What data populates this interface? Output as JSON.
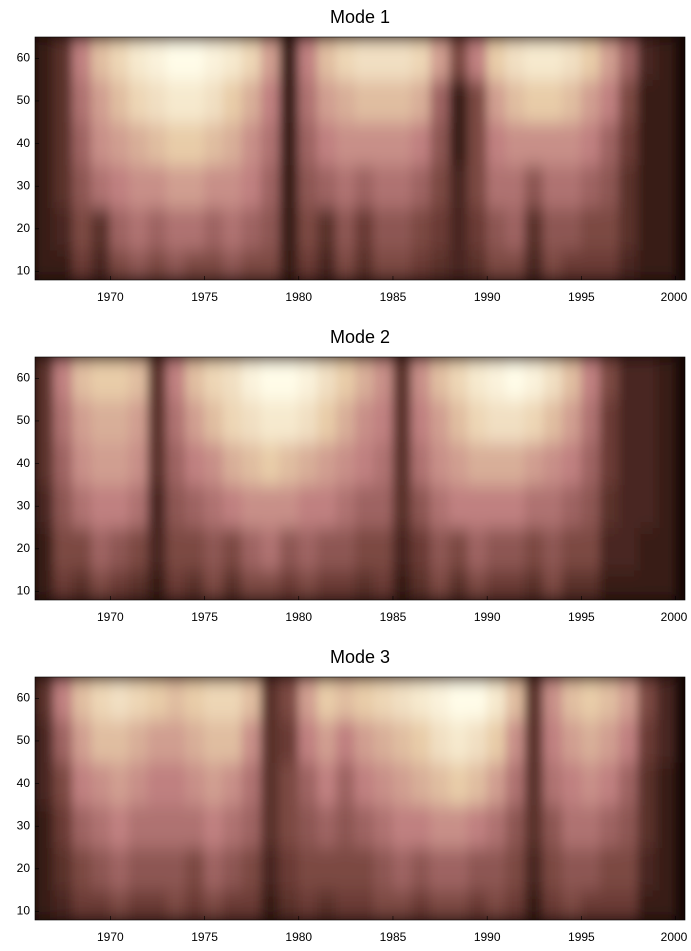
{
  "chart_data": [
    {
      "type": "heatmap",
      "title": "Mode 1",
      "x": [
        1966.5,
        1967.5,
        1968.5,
        1969.5,
        1970.5,
        1971.5,
        1972.5,
        1973.5,
        1974.5,
        1975.5,
        1976.5,
        1977.5,
        1978.5,
        1979.5,
        1980.5,
        1981.5,
        1982.5,
        1983.5,
        1984.5,
        1985.5,
        1986.5,
        1987.5,
        1988.5,
        1989.5,
        1990.5,
        1991.5,
        1992.5,
        1993.5,
        1994.5,
        1995.5,
        1996.5,
        1997.5,
        1998.5,
        1999.5
      ],
      "y": [
        10,
        20,
        30,
        40,
        50,
        60
      ],
      "z": [
        [
          0.1,
          0.1,
          0.25,
          0.15,
          0.3,
          0.35,
          0.3,
          0.35,
          0.3,
          0.3,
          0.35,
          0.3,
          0.3,
          0.1,
          0.25,
          0.15,
          0.3,
          0.2,
          0.3,
          0.3,
          0.25,
          0.2,
          0.15,
          0.2,
          0.3,
          0.3,
          0.15,
          0.3,
          0.25,
          0.25,
          0.25,
          0.15,
          0.1,
          0.1
        ],
        [
          0.1,
          0.15,
          0.3,
          0.2,
          0.4,
          0.45,
          0.4,
          0.45,
          0.45,
          0.4,
          0.45,
          0.4,
          0.35,
          0.1,
          0.3,
          0.2,
          0.35,
          0.25,
          0.35,
          0.35,
          0.3,
          0.25,
          0.15,
          0.25,
          0.35,
          0.4,
          0.2,
          0.35,
          0.35,
          0.3,
          0.3,
          0.2,
          0.1,
          0.1
        ],
        [
          0.1,
          0.2,
          0.35,
          0.45,
          0.5,
          0.55,
          0.55,
          0.6,
          0.6,
          0.55,
          0.55,
          0.5,
          0.4,
          0.1,
          0.35,
          0.4,
          0.45,
          0.4,
          0.45,
          0.45,
          0.4,
          0.3,
          0.15,
          0.3,
          0.45,
          0.45,
          0.35,
          0.45,
          0.45,
          0.4,
          0.35,
          0.2,
          0.1,
          0.1
        ],
        [
          0.1,
          0.2,
          0.4,
          0.55,
          0.6,
          0.65,
          0.7,
          0.75,
          0.75,
          0.7,
          0.65,
          0.55,
          0.45,
          0.1,
          0.4,
          0.5,
          0.55,
          0.55,
          0.55,
          0.55,
          0.5,
          0.35,
          0.1,
          0.3,
          0.5,
          0.55,
          0.55,
          0.55,
          0.55,
          0.5,
          0.4,
          0.25,
          0.1,
          0.1
        ],
        [
          0.1,
          0.2,
          0.45,
          0.6,
          0.7,
          0.8,
          0.85,
          0.9,
          0.9,
          0.85,
          0.75,
          0.65,
          0.5,
          0.1,
          0.45,
          0.6,
          0.65,
          0.7,
          0.7,
          0.7,
          0.65,
          0.4,
          0.1,
          0.3,
          0.6,
          0.7,
          0.75,
          0.75,
          0.7,
          0.6,
          0.5,
          0.3,
          0.1,
          0.1
        ],
        [
          0.1,
          0.2,
          0.5,
          0.7,
          0.8,
          0.9,
          0.95,
          1,
          1,
          0.95,
          0.9,
          0.8,
          0.6,
          0.1,
          0.5,
          0.7,
          0.8,
          0.85,
          0.85,
          0.85,
          0.8,
          0.6,
          0.3,
          0.5,
          0.75,
          0.85,
          0.9,
          0.9,
          0.85,
          0.75,
          0.6,
          0.4,
          0.15,
          0.1
        ]
      ],
      "colormap": [
        "#140604",
        "#6b3a34",
        "#c08080",
        "#e8cca8",
        "#fffce8"
      ],
      "xlim": [
        1966,
        2000.5
      ],
      "ylim": [
        8,
        65
      ],
      "xticks": [
        1970,
        1975,
        1980,
        1985,
        1990,
        1995,
        2000
      ],
      "yticks": [
        10,
        20,
        30,
        40,
        50,
        60
      ]
    },
    {
      "type": "heatmap",
      "title": "Mode 2",
      "x": [
        1966.5,
        1967.5,
        1968.5,
        1969.5,
        1970.5,
        1971.5,
        1972.5,
        1973.5,
        1974.5,
        1975.5,
        1976.5,
        1977.5,
        1978.5,
        1979.5,
        1980.5,
        1981.5,
        1982.5,
        1983.5,
        1984.5,
        1985.5,
        1986.5,
        1987.5,
        1988.5,
        1989.5,
        1990.5,
        1991.5,
        1992.5,
        1993.5,
        1994.5,
        1995.5,
        1996.5,
        1997.5,
        1998.5,
        1999.5
      ],
      "y": [
        10,
        20,
        30,
        40,
        50,
        60
      ],
      "z": [
        [
          0.1,
          0.25,
          0.2,
          0.3,
          0.25,
          0.2,
          0.1,
          0.25,
          0.2,
          0.3,
          0.2,
          0.3,
          0.3,
          0.25,
          0.3,
          0.25,
          0.25,
          0.2,
          0.25,
          0.1,
          0.2,
          0.3,
          0.2,
          0.3,
          0.25,
          0.25,
          0.2,
          0.3,
          0.2,
          0.2,
          0.1,
          0.1,
          0.1,
          0.1
        ],
        [
          0.1,
          0.3,
          0.3,
          0.4,
          0.35,
          0.3,
          0.15,
          0.3,
          0.3,
          0.35,
          0.3,
          0.4,
          0.45,
          0.35,
          0.4,
          0.35,
          0.35,
          0.3,
          0.3,
          0.15,
          0.25,
          0.35,
          0.3,
          0.4,
          0.35,
          0.35,
          0.3,
          0.35,
          0.3,
          0.3,
          0.15,
          0.15,
          0.1,
          0.1
        ],
        [
          0.15,
          0.35,
          0.45,
          0.5,
          0.5,
          0.45,
          0.15,
          0.35,
          0.4,
          0.45,
          0.5,
          0.55,
          0.55,
          0.55,
          0.5,
          0.5,
          0.45,
          0.4,
          0.4,
          0.2,
          0.35,
          0.45,
          0.5,
          0.5,
          0.5,
          0.5,
          0.45,
          0.45,
          0.4,
          0.35,
          0.2,
          0.15,
          0.15,
          0.1
        ],
        [
          0.2,
          0.4,
          0.55,
          0.6,
          0.6,
          0.55,
          0.2,
          0.4,
          0.5,
          0.55,
          0.65,
          0.7,
          0.75,
          0.7,
          0.65,
          0.6,
          0.55,
          0.5,
          0.45,
          0.2,
          0.45,
          0.55,
          0.6,
          0.65,
          0.65,
          0.65,
          0.6,
          0.55,
          0.5,
          0.4,
          0.25,
          0.15,
          0.15,
          0.1
        ],
        [
          0.2,
          0.45,
          0.6,
          0.65,
          0.65,
          0.6,
          0.2,
          0.45,
          0.6,
          0.7,
          0.8,
          0.85,
          0.9,
          0.9,
          0.85,
          0.75,
          0.65,
          0.55,
          0.5,
          0.2,
          0.5,
          0.6,
          0.7,
          0.8,
          0.85,
          0.85,
          0.8,
          0.7,
          0.6,
          0.45,
          0.25,
          0.15,
          0.15,
          0.1
        ],
        [
          0.2,
          0.5,
          0.7,
          0.75,
          0.75,
          0.7,
          0.2,
          0.5,
          0.7,
          0.8,
          0.85,
          0.95,
          1,
          1,
          0.95,
          0.85,
          0.75,
          0.65,
          0.55,
          0.2,
          0.55,
          0.7,
          0.8,
          0.9,
          0.95,
          1,
          0.95,
          0.85,
          0.7,
          0.5,
          0.3,
          0.15,
          0.15,
          0.1
        ]
      ],
      "colormap": [
        "#140604",
        "#6b3a34",
        "#c08080",
        "#e8cca8",
        "#fffce8"
      ],
      "xlim": [
        1966,
        2000.5
      ],
      "ylim": [
        8,
        65
      ],
      "xticks": [
        1970,
        1975,
        1980,
        1985,
        1990,
        1995,
        2000
      ],
      "yticks": [
        10,
        20,
        30,
        40,
        50,
        60
      ]
    },
    {
      "type": "heatmap",
      "title": "Mode 3",
      "x": [
        1966.5,
        1967.5,
        1968.5,
        1969.5,
        1970.5,
        1971.5,
        1972.5,
        1973.5,
        1974.5,
        1975.5,
        1976.5,
        1977.5,
        1978.5,
        1979.5,
        1980.5,
        1981.5,
        1982.5,
        1983.5,
        1984.5,
        1985.5,
        1986.5,
        1987.5,
        1988.5,
        1989.5,
        1990.5,
        1991.5,
        1992.5,
        1993.5,
        1994.5,
        1995.5,
        1996.5,
        1997.5,
        1998.5,
        1999.5
      ],
      "y": [
        10,
        20,
        30,
        40,
        50,
        60
      ],
      "z": [
        [
          0.1,
          0.15,
          0.25,
          0.25,
          0.3,
          0.25,
          0.25,
          0.3,
          0.25,
          0.3,
          0.25,
          0.25,
          0.1,
          0.2,
          0.25,
          0.2,
          0.25,
          0.25,
          0.3,
          0.3,
          0.25,
          0.3,
          0.3,
          0.25,
          0.3,
          0.25,
          0.1,
          0.25,
          0.3,
          0.25,
          0.25,
          0.25,
          0.1,
          0.1
        ],
        [
          0.1,
          0.2,
          0.3,
          0.35,
          0.4,
          0.35,
          0.35,
          0.35,
          0.3,
          0.4,
          0.35,
          0.3,
          0.15,
          0.25,
          0.3,
          0.3,
          0.3,
          0.3,
          0.35,
          0.4,
          0.35,
          0.4,
          0.4,
          0.35,
          0.35,
          0.3,
          0.15,
          0.3,
          0.35,
          0.35,
          0.3,
          0.3,
          0.15,
          0.1
        ],
        [
          0.1,
          0.25,
          0.4,
          0.45,
          0.5,
          0.45,
          0.45,
          0.45,
          0.45,
          0.5,
          0.45,
          0.4,
          0.2,
          0.3,
          0.35,
          0.4,
          0.35,
          0.4,
          0.45,
          0.5,
          0.5,
          0.55,
          0.55,
          0.5,
          0.45,
          0.35,
          0.2,
          0.35,
          0.45,
          0.45,
          0.4,
          0.35,
          0.2,
          0.1
        ],
        [
          0.15,
          0.3,
          0.5,
          0.55,
          0.6,
          0.55,
          0.5,
          0.5,
          0.55,
          0.6,
          0.55,
          0.45,
          0.2,
          0.3,
          0.4,
          0.5,
          0.4,
          0.5,
          0.55,
          0.6,
          0.65,
          0.7,
          0.75,
          0.7,
          0.6,
          0.45,
          0.2,
          0.45,
          0.5,
          0.55,
          0.5,
          0.4,
          0.2,
          0.1
        ],
        [
          0.15,
          0.4,
          0.6,
          0.7,
          0.7,
          0.65,
          0.6,
          0.6,
          0.65,
          0.7,
          0.7,
          0.55,
          0.2,
          0.25,
          0.5,
          0.6,
          0.5,
          0.6,
          0.65,
          0.7,
          0.75,
          0.85,
          0.9,
          0.85,
          0.75,
          0.55,
          0.2,
          0.5,
          0.6,
          0.65,
          0.6,
          0.5,
          0.25,
          0.15
        ],
        [
          0.2,
          0.5,
          0.7,
          0.8,
          0.85,
          0.8,
          0.75,
          0.7,
          0.75,
          0.8,
          0.8,
          0.7,
          0.2,
          0.3,
          0.6,
          0.75,
          0.7,
          0.75,
          0.8,
          0.85,
          0.9,
          0.95,
          1,
          1,
          0.9,
          0.7,
          0.2,
          0.55,
          0.7,
          0.75,
          0.7,
          0.6,
          0.3,
          0.15
        ]
      ],
      "colormap": [
        "#140604",
        "#6b3a34",
        "#c08080",
        "#e8cca8",
        "#fffce8"
      ],
      "xlim": [
        1966,
        2000.5
      ],
      "ylim": [
        8,
        65
      ],
      "xticks": [
        1970,
        1975,
        1980,
        1985,
        1990,
        1995,
        2000
      ],
      "yticks": [
        10,
        20,
        30,
        40,
        50,
        60
      ]
    }
  ]
}
